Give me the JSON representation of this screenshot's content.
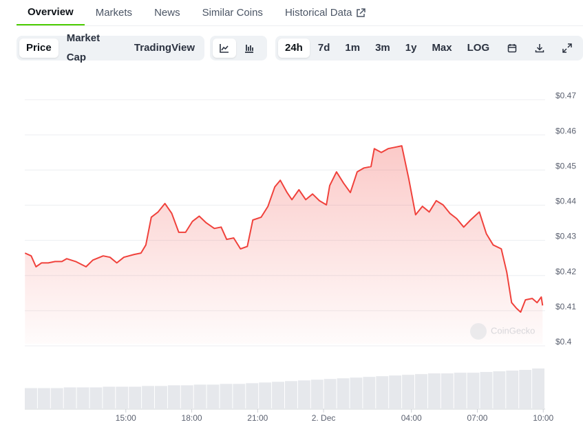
{
  "tabs": {
    "items": [
      "Overview",
      "Markets",
      "News",
      "Similar Coins",
      "Historical Data"
    ],
    "active": 0
  },
  "toolbar": {
    "views": {
      "items": [
        "Price",
        "Market Cap",
        "TradingView"
      ],
      "active": 0
    },
    "ranges": {
      "items": [
        "24h",
        "7d",
        "1m",
        "3m",
        "1y",
        "Max",
        "LOG"
      ],
      "active": 0
    }
  },
  "watermark": "CoinGecko",
  "chart_data": {
    "type": "line",
    "x": [
      10.41,
      10.69,
      10.91,
      11.16,
      11.47,
      11.78,
      12.09,
      12.31,
      12.72,
      13.19,
      13.5,
      13.97,
      14.28,
      14.59,
      14.91,
      15.38,
      15.69,
      15.91,
      16.16,
      16.47,
      16.78,
      17.09,
      17.41,
      17.72,
      18.03,
      18.34,
      18.66,
      19.03,
      19.34,
      19.59,
      19.91,
      20.22,
      20.53,
      20.78,
      21.16,
      21.47,
      21.78,
      22.03,
      22.34,
      22.56,
      22.88,
      23.19,
      23.5,
      23.81,
      24.13,
      24.28,
      24.59,
      24.91,
      25.22,
      25.53,
      25.84,
      26.16,
      26.31,
      26.63,
      26.94,
      27.25,
      27.56,
      27.88,
      28.19,
      28.5,
      28.81,
      29.13,
      29.44,
      29.75,
      30.06,
      30.38,
      30.69,
      31.09,
      31.41,
      31.72,
      32.09,
      32.34,
      32.56,
      32.78,
      32.97,
      33.19,
      33.5,
      33.72,
      33.91,
      33.97
    ],
    "series": [
      {
        "name": "Price",
        "color": "#f0413b",
        "values": [
          0.4254,
          0.4246,
          0.4215,
          0.4226,
          0.4226,
          0.423,
          0.423,
          0.4238,
          0.423,
          0.4215,
          0.4234,
          0.4246,
          0.4242,
          0.4226,
          0.4242,
          0.425,
          0.4254,
          0.4277,
          0.4356,
          0.4371,
          0.4395,
          0.4367,
          0.4313,
          0.4313,
          0.4344,
          0.4359,
          0.434,
          0.4324,
          0.4328,
          0.4293,
          0.4297,
          0.4266,
          0.4273,
          0.4348,
          0.4356,
          0.4387,
          0.4442,
          0.4461,
          0.4426,
          0.4406,
          0.4434,
          0.4406,
          0.4422,
          0.4403,
          0.4391,
          0.4446,
          0.4485,
          0.4453,
          0.4426,
          0.4485,
          0.4496,
          0.45,
          0.4551,
          0.454,
          0.4551,
          0.4555,
          0.4559,
          0.4465,
          0.4363,
          0.4387,
          0.4371,
          0.4403,
          0.4391,
          0.4367,
          0.4352,
          0.4328,
          0.4348,
          0.4371,
          0.4309,
          0.4277,
          0.4266,
          0.4199,
          0.4113,
          0.4097,
          0.4086,
          0.4121,
          0.4125,
          0.4113,
          0.4129,
          0.4105
        ]
      }
    ],
    "volume": {
      "color": "#e6e8ec",
      "values": [
        29,
        29,
        29,
        30,
        30,
        30,
        31,
        31,
        31,
        32,
        32,
        33,
        33,
        34,
        34,
        35,
        35,
        36,
        37,
        38,
        39,
        40,
        41,
        42,
        43,
        44,
        45,
        46,
        47,
        48,
        49,
        50,
        50,
        51,
        51,
        52,
        53,
        54,
        55,
        57
      ]
    },
    "xlim": [
      10.4,
      34.4
    ],
    "xticks": [
      {
        "value": 15,
        "label": "15:00"
      },
      {
        "value": 18,
        "label": "18:00"
      },
      {
        "value": 21,
        "label": "21:00"
      },
      {
        "value": 24,
        "label": "2. Dec"
      },
      {
        "value": 28,
        "label": "04:00"
      },
      {
        "value": 31,
        "label": "07:00"
      },
      {
        "value": 34,
        "label": "10:00"
      }
    ],
    "ylim": [
      0.4,
      0.47
    ],
    "yticks": [
      {
        "value": 0.4,
        "label": "$0.4"
      },
      {
        "value": 0.41,
        "label": "$0.41"
      },
      {
        "value": 0.42,
        "label": "$0.42"
      },
      {
        "value": 0.43,
        "label": "$0.43"
      },
      {
        "value": 0.44,
        "label": "$0.44"
      },
      {
        "value": 0.45,
        "label": "$0.45"
      },
      {
        "value": 0.46,
        "label": "$0.46"
      },
      {
        "value": 0.47,
        "label": "$0.47"
      }
    ],
    "grid": true
  }
}
